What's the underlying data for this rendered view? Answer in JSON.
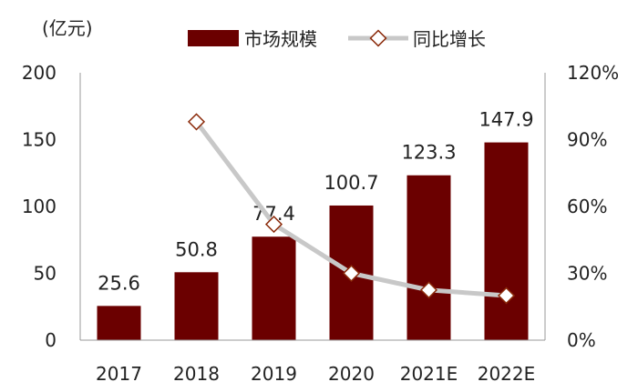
{
  "chart_data": {
    "type": "bar",
    "unit_label": "(亿元)",
    "categories": [
      "2017",
      "2018",
      "2019",
      "2020",
      "2021E",
      "2022E"
    ],
    "series": [
      {
        "name": "市场规模",
        "type": "bar",
        "axis": "left",
        "values": [
          25.6,
          50.8,
          77.4,
          100.7,
          123.3,
          147.9
        ],
        "labels": [
          "25.6",
          "50.8",
          "77.4",
          "100.7",
          "123.3",
          "147.9"
        ],
        "color": "#6b0000"
      },
      {
        "name": "同比增长",
        "type": "line",
        "axis": "right",
        "values": [
          null,
          98,
          52,
          30,
          22.5,
          20
        ],
        "color": "#c8c8c8",
        "marker_color": "#8b2a0a"
      }
    ],
    "y_left": {
      "min": 0,
      "max": 200,
      "ticks": [
        0,
        50,
        100,
        150,
        200
      ],
      "tick_labels": [
        "0",
        "50",
        "100",
        "150",
        "200"
      ]
    },
    "y_right": {
      "min": 0,
      "max": 120,
      "ticks": [
        0,
        30,
        60,
        90,
        120
      ],
      "tick_labels": [
        "0%",
        "30%",
        "60%",
        "90%",
        "120%"
      ]
    },
    "legend_position": "top"
  }
}
